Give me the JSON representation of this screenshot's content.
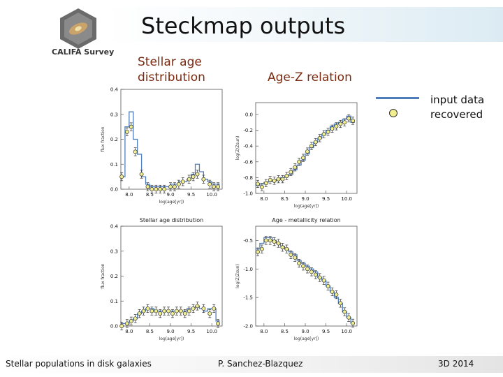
{
  "title": "Steckmap outputs",
  "logo_text": "CALIFA Survey",
  "labels": {
    "age_dist": [
      "Stellar age",
      "distribution"
    ],
    "age_z": "Age-Z relation"
  },
  "legend": {
    "input": "input data",
    "recovered": "recovered"
  },
  "footer": {
    "left": "Stellar populations in disk galaxies",
    "center": "P. Sanchez-Blazquez",
    "right": "3D 2014"
  },
  "colors": {
    "input_line": "#4f7dba",
    "marker_fill": "#f1ee8e",
    "label_text": "#7a2a10"
  },
  "chart_data": [
    {
      "type": "line",
      "xlabel": "log(age[yr])",
      "ylabel": "flux fraction",
      "xlim": [
        7.8,
        10.25
      ],
      "ylim": [
        0,
        0.4
      ],
      "xticks": [
        8.0,
        8.5,
        9.0,
        9.5,
        10.0
      ],
      "yticks": [
        0.0,
        0.1,
        0.2,
        0.3,
        0.4
      ],
      "input_steps": [
        [
          7.8,
          0.05
        ],
        [
          7.9,
          0.25
        ],
        [
          8.0,
          0.31
        ],
        [
          8.1,
          0.2
        ],
        [
          8.2,
          0.14
        ],
        [
          8.3,
          0.05
        ],
        [
          8.4,
          0.02
        ],
        [
          8.5,
          0.01
        ],
        [
          8.6,
          0.01
        ],
        [
          8.7,
          0.01
        ],
        [
          8.8,
          0.01
        ],
        [
          8.9,
          0.01
        ],
        [
          9.0,
          0.02
        ],
        [
          9.1,
          0.02
        ],
        [
          9.2,
          0.03
        ],
        [
          9.3,
          0.03
        ],
        [
          9.4,
          0.04
        ],
        [
          9.5,
          0.06
        ],
        [
          9.6,
          0.1
        ],
        [
          9.7,
          0.07
        ],
        [
          9.8,
          0.04
        ],
        [
          9.9,
          0.03
        ],
        [
          10.0,
          0.02
        ],
        [
          10.1,
          0.02
        ]
      ],
      "recovered": [
        [
          7.82,
          0.05
        ],
        [
          7.95,
          0.23
        ],
        [
          8.05,
          0.25
        ],
        [
          8.15,
          0.15
        ],
        [
          8.3,
          0.06
        ],
        [
          8.45,
          0.01
        ],
        [
          8.55,
          0.0
        ],
        [
          8.65,
          0.0
        ],
        [
          8.75,
          0.0
        ],
        [
          8.85,
          0.0
        ],
        [
          9.0,
          0.01
        ],
        [
          9.1,
          0.01
        ],
        [
          9.2,
          0.02
        ],
        [
          9.3,
          0.03
        ],
        [
          9.45,
          0.04
        ],
        [
          9.55,
          0.05
        ],
        [
          9.65,
          0.06
        ],
        [
          9.8,
          0.04
        ],
        [
          9.95,
          0.02
        ],
        [
          10.05,
          0.01
        ],
        [
          10.15,
          0.01
        ]
      ]
    },
    {
      "type": "line",
      "xlabel": "log(age[yr])",
      "ylabel": "log(Z/Zsun)",
      "xlim": [
        7.8,
        10.25
      ],
      "ylim": [
        -1.0,
        0.15
      ],
      "xticks": [
        8.0,
        8.5,
        9.0,
        9.5,
        10.0
      ],
      "yticks": [
        0.0,
        -0.2,
        -0.4,
        -0.6,
        -0.8,
        -1.0
      ],
      "input_steps": [
        [
          7.8,
          -0.9
        ],
        [
          7.9,
          -0.88
        ],
        [
          8.0,
          -0.86
        ],
        [
          8.1,
          -0.85
        ],
        [
          8.2,
          -0.84
        ],
        [
          8.3,
          -0.82
        ],
        [
          8.4,
          -0.8
        ],
        [
          8.5,
          -0.78
        ],
        [
          8.6,
          -0.76
        ],
        [
          8.7,
          -0.7
        ],
        [
          8.8,
          -0.64
        ],
        [
          8.9,
          -0.58
        ],
        [
          9.0,
          -0.5
        ],
        [
          9.1,
          -0.42
        ],
        [
          9.2,
          -0.35
        ],
        [
          9.3,
          -0.3
        ],
        [
          9.4,
          -0.25
        ],
        [
          9.5,
          -0.2
        ],
        [
          9.6,
          -0.15
        ],
        [
          9.7,
          -0.12
        ],
        [
          9.8,
          -0.1
        ],
        [
          9.9,
          -0.06
        ],
        [
          10.0,
          -0.02
        ],
        [
          10.1,
          -0.1
        ]
      ],
      "recovered": [
        [
          7.85,
          -0.88
        ],
        [
          7.95,
          -0.92
        ],
        [
          8.05,
          -0.87
        ],
        [
          8.15,
          -0.83
        ],
        [
          8.25,
          -0.84
        ],
        [
          8.35,
          -0.82
        ],
        [
          8.45,
          -0.82
        ],
        [
          8.55,
          -0.78
        ],
        [
          8.65,
          -0.73
        ],
        [
          8.75,
          -0.67
        ],
        [
          8.85,
          -0.6
        ],
        [
          8.95,
          -0.55
        ],
        [
          9.05,
          -0.47
        ],
        [
          9.15,
          -0.4
        ],
        [
          9.25,
          -0.35
        ],
        [
          9.35,
          -0.3
        ],
        [
          9.45,
          -0.25
        ],
        [
          9.55,
          -0.22
        ],
        [
          9.65,
          -0.18
        ],
        [
          9.75,
          -0.15
        ],
        [
          9.85,
          -0.12
        ],
        [
          9.95,
          -0.1
        ],
        [
          10.05,
          -0.05
        ],
        [
          10.15,
          -0.08
        ]
      ]
    },
    {
      "type": "line",
      "title": "Stellar age distribution",
      "xlabel": "log(age[yr])",
      "ylabel": "flux fraction",
      "xlim": [
        7.8,
        10.25
      ],
      "ylim": [
        0,
        0.4
      ],
      "xticks": [
        8.0,
        8.5,
        9.0,
        9.5,
        10.0
      ],
      "yticks": [
        0.0,
        0.1,
        0.2,
        0.3,
        0.4
      ],
      "input_steps": [
        [
          7.8,
          0.01
        ],
        [
          7.9,
          0.01
        ],
        [
          8.0,
          0.02
        ],
        [
          8.1,
          0.03
        ],
        [
          8.2,
          0.05
        ],
        [
          8.3,
          0.06
        ],
        [
          8.4,
          0.07
        ],
        [
          8.5,
          0.07
        ],
        [
          8.6,
          0.06
        ],
        [
          8.7,
          0.06
        ],
        [
          8.8,
          0.06
        ],
        [
          8.9,
          0.06
        ],
        [
          9.0,
          0.06
        ],
        [
          9.1,
          0.06
        ],
        [
          9.2,
          0.06
        ],
        [
          9.3,
          0.06
        ],
        [
          9.4,
          0.07
        ],
        [
          9.5,
          0.07
        ],
        [
          9.6,
          0.08
        ],
        [
          9.7,
          0.07
        ],
        [
          9.8,
          0.06
        ],
        [
          9.9,
          0.07
        ],
        [
          10.0,
          0.07
        ],
        [
          10.1,
          0.02
        ]
      ],
      "recovered": [
        [
          7.82,
          0.0
        ],
        [
          7.95,
          0.01
        ],
        [
          8.05,
          0.02
        ],
        [
          8.15,
          0.03
        ],
        [
          8.25,
          0.05
        ],
        [
          8.35,
          0.06
        ],
        [
          8.45,
          0.07
        ],
        [
          8.55,
          0.06
        ],
        [
          8.65,
          0.06
        ],
        [
          8.75,
          0.05
        ],
        [
          8.85,
          0.06
        ],
        [
          8.95,
          0.06
        ],
        [
          9.05,
          0.05
        ],
        [
          9.15,
          0.06
        ],
        [
          9.25,
          0.06
        ],
        [
          9.35,
          0.05
        ],
        [
          9.45,
          0.06
        ],
        [
          9.55,
          0.07
        ],
        [
          9.65,
          0.08
        ],
        [
          9.8,
          0.07
        ],
        [
          9.95,
          0.05
        ],
        [
          10.05,
          0.07
        ],
        [
          10.15,
          0.01
        ]
      ]
    },
    {
      "type": "line",
      "title": "Age - metallicity relation",
      "xlabel": "log(age[yr])",
      "ylabel": "log(Z/Zsun)",
      "xlim": [
        7.8,
        10.25
      ],
      "ylim": [
        -2.0,
        -0.25
      ],
      "xticks": [
        8.0,
        8.5,
        9.0,
        9.5,
        10.0
      ],
      "yticks": [
        -0.5,
        -1.0,
        -1.5,
        -2.0
      ],
      "input_steps": [
        [
          7.8,
          -0.65
        ],
        [
          7.9,
          -0.55
        ],
        [
          8.0,
          -0.45
        ],
        [
          8.1,
          -0.45
        ],
        [
          8.2,
          -0.5
        ],
        [
          8.3,
          -0.55
        ],
        [
          8.4,
          -0.6
        ],
        [
          8.5,
          -0.65
        ],
        [
          8.6,
          -0.7
        ],
        [
          8.7,
          -0.75
        ],
        [
          8.8,
          -0.85
        ],
        [
          8.9,
          -0.9
        ],
        [
          9.0,
          -0.95
        ],
        [
          9.1,
          -1.0
        ],
        [
          9.2,
          -1.05
        ],
        [
          9.3,
          -1.15
        ],
        [
          9.4,
          -1.2
        ],
        [
          9.5,
          -1.3
        ],
        [
          9.6,
          -1.4
        ],
        [
          9.7,
          -1.5
        ],
        [
          9.8,
          -1.6
        ],
        [
          9.9,
          -1.75
        ],
        [
          10.0,
          -1.85
        ],
        [
          10.1,
          -1.95
        ]
      ],
      "recovered": [
        [
          7.85,
          -0.7
        ],
        [
          7.95,
          -0.65
        ],
        [
          8.05,
          -0.5
        ],
        [
          8.15,
          -0.5
        ],
        [
          8.25,
          -0.52
        ],
        [
          8.35,
          -0.55
        ],
        [
          8.45,
          -0.62
        ],
        [
          8.55,
          -0.65
        ],
        [
          8.65,
          -0.75
        ],
        [
          8.75,
          -0.8
        ],
        [
          8.85,
          -0.9
        ],
        [
          8.95,
          -0.95
        ],
        [
          9.05,
          -1.0
        ],
        [
          9.15,
          -1.05
        ],
        [
          9.25,
          -1.1
        ],
        [
          9.35,
          -1.15
        ],
        [
          9.45,
          -1.2
        ],
        [
          9.55,
          -1.3
        ],
        [
          9.65,
          -1.4
        ],
        [
          9.75,
          -1.45
        ],
        [
          9.85,
          -1.6
        ],
        [
          9.95,
          -1.75
        ],
        [
          10.05,
          -1.85
        ],
        [
          10.15,
          -1.95
        ]
      ]
    }
  ]
}
